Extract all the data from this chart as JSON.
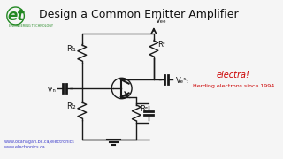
{
  "title": "Design a Common Emitter Amplifier",
  "title_fontsize": 9,
  "bg_color": "#f5f5f5",
  "circuit_color": "#1a1a1a",
  "text_color": "#111111",
  "link_color": "#4444cc",
  "red_color": "#cc0000",
  "links": [
    "www.okanagan.bc.ca/electronics",
    "www.electronics.ca"
  ],
  "electra_text": "electra!",
  "slogan": "Herding electrons since 1994",
  "vcc_label": "Vₑₑ",
  "vout_label": "Vₑ⁵ₜ",
  "vin_label": "vᴵₙ",
  "rb1_label": "Rᴵ₁",
  "rb2_label": "Rᴵ₂",
  "rc_label": "Rᶜ",
  "re_label": "Rᵉ"
}
